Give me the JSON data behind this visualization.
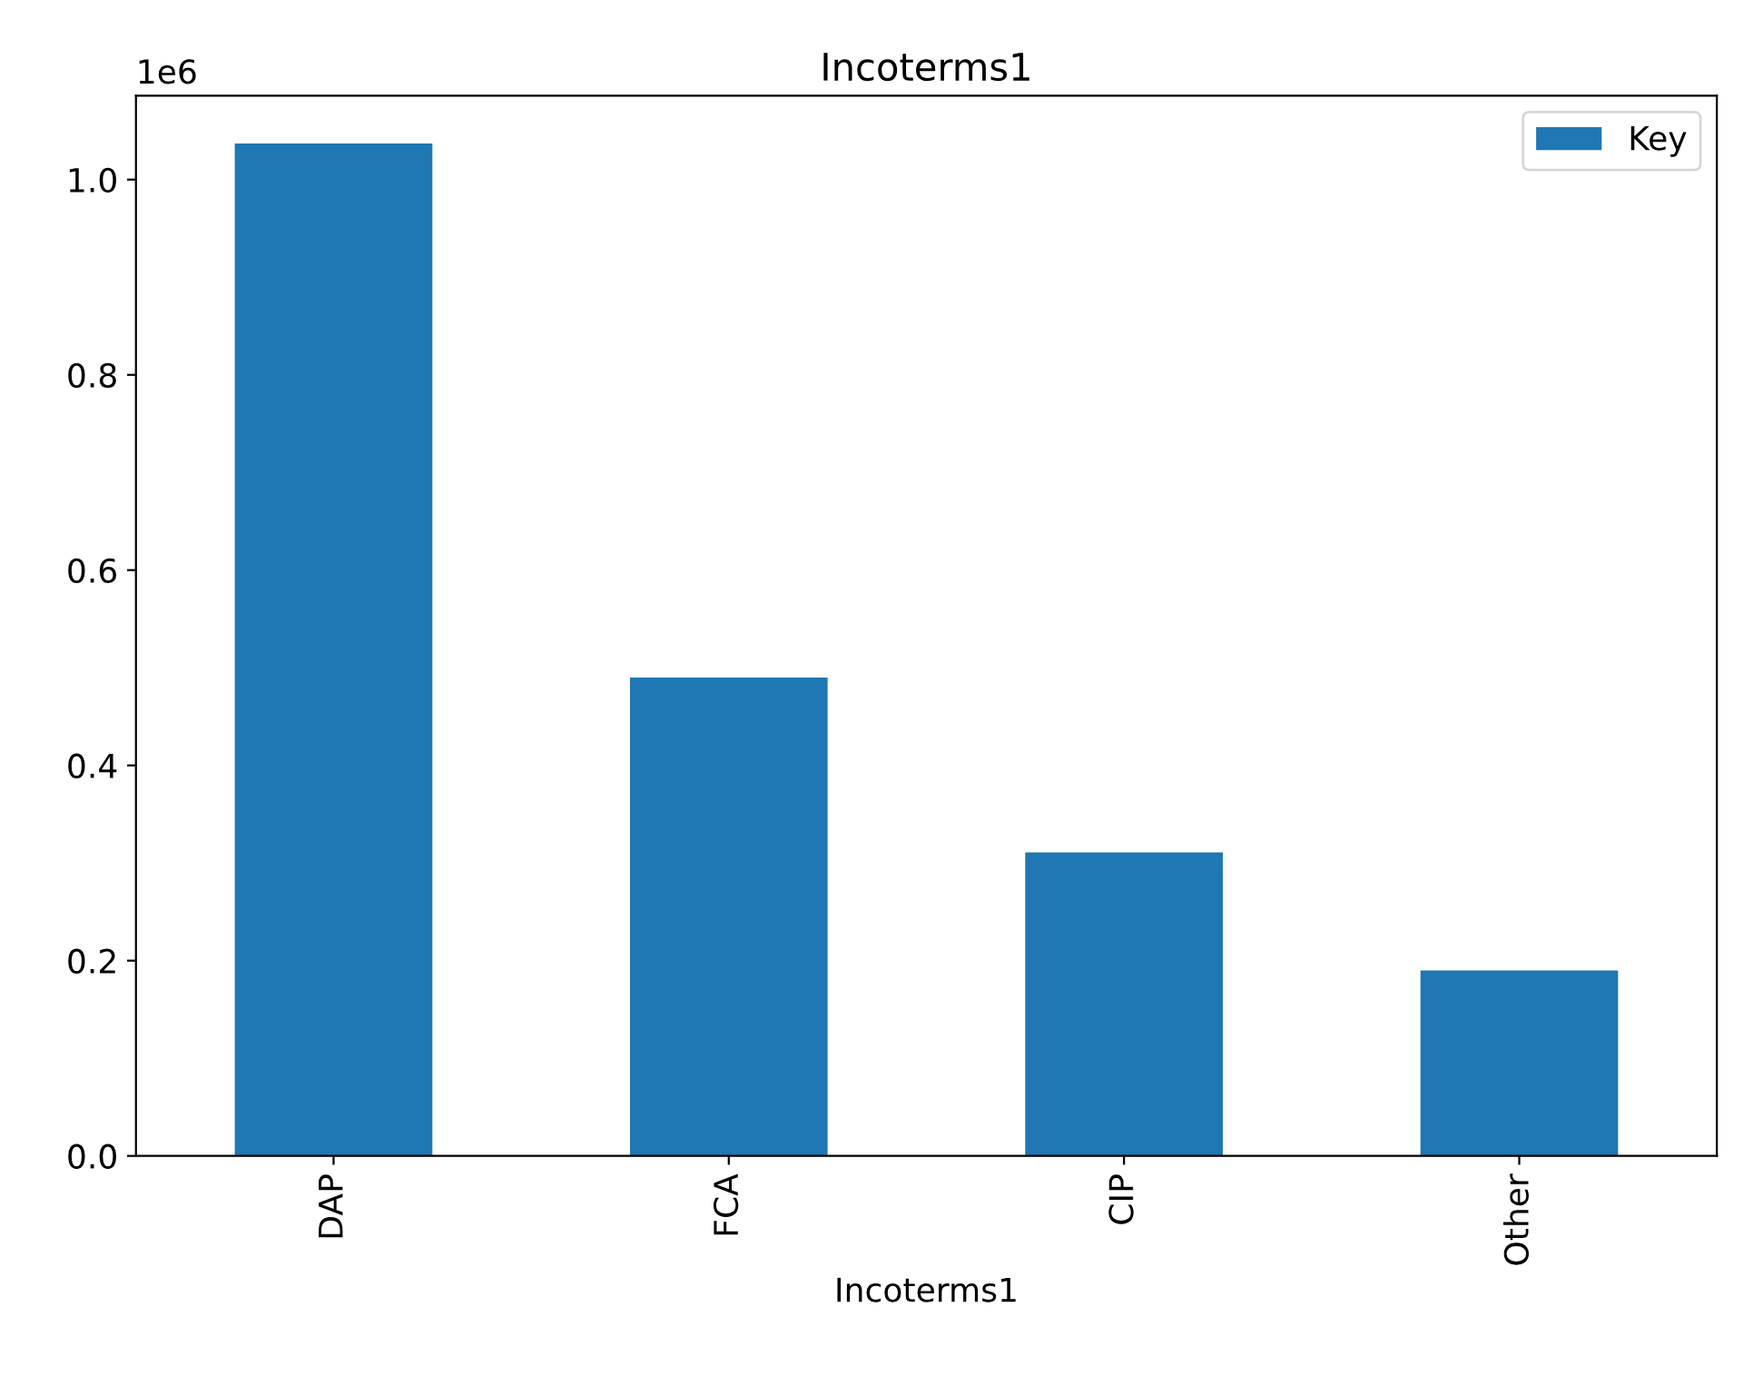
{
  "chart_data": {
    "type": "bar",
    "title": "Incoterms1",
    "xlabel": "Incoterms1",
    "categories": [
      "DAP",
      "FCA",
      "CIP",
      "Other"
    ],
    "series": [
      {
        "name": "Key",
        "color": "#1f77b4",
        "values": [
          1.037,
          0.49,
          0.311,
          0.19
        ]
      }
    ],
    "ylim": [
      0,
      1.086
    ],
    "yticks": [
      {
        "value": 0,
        "label": "0.0"
      },
      0.2,
      0.4,
      0.6,
      0.8,
      {
        "value": 1,
        "label": "1.0"
      }
    ],
    "annotations": [
      "1e6"
    ],
    "legend": "top right",
    "grid": false
  }
}
